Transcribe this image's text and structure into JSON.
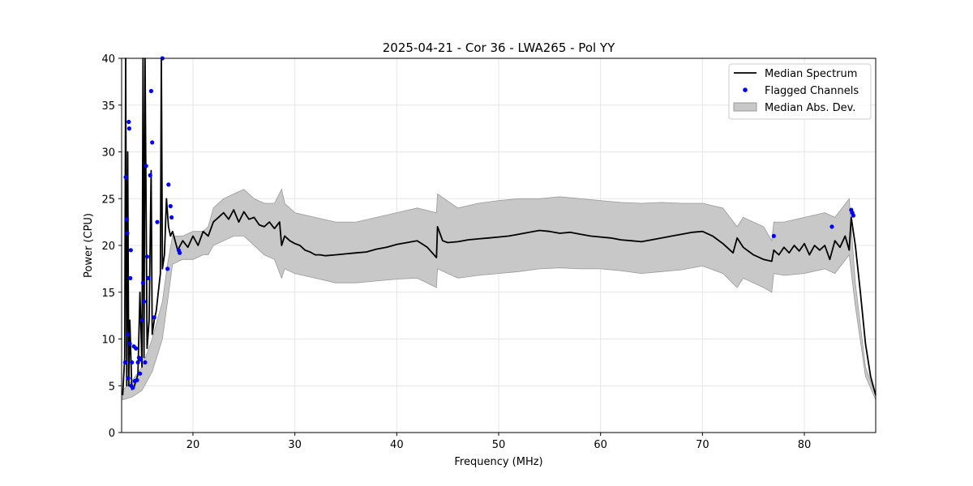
{
  "chart_data": {
    "type": "line",
    "title": "2025-04-21 - Cor 36 - LWA265 - Pol YY",
    "xlabel": "Frequency (MHz)",
    "ylabel": "Power (CPU)",
    "xlim": [
      13,
      87
    ],
    "ylim": [
      0,
      40
    ],
    "xticks": [
      20,
      30,
      40,
      50,
      60,
      70,
      80
    ],
    "yticks": [
      0,
      5,
      10,
      15,
      20,
      25,
      30,
      35,
      40
    ],
    "grid": true,
    "legend_position": "top-right",
    "colors": {
      "median": "#000000",
      "flagged": "#0000ff",
      "mad": "#c8c8c8",
      "mad_edge": "#999999"
    },
    "legend": [
      {
        "label": "Median Spectrum",
        "kind": "line"
      },
      {
        "label": "Flagged Channels",
        "kind": "scatter"
      },
      {
        "label": "Median Abs. Dev.",
        "kind": "band"
      }
    ],
    "series": [
      {
        "name": "Median Spectrum",
        "x": [
          13.1,
          13.3,
          13.4,
          13.5,
          13.6,
          13.7,
          13.8,
          14.0,
          14.2,
          14.4,
          14.6,
          14.8,
          15.0,
          15.1,
          15.2,
          15.3,
          15.5,
          15.7,
          15.9,
          16.0,
          16.2,
          16.4,
          16.6,
          16.8,
          16.9,
          17.0,
          17.2,
          17.4,
          17.6,
          17.8,
          18.0,
          18.5,
          19.0,
          19.5,
          20.0,
          20.5,
          21.0,
          21.5,
          22.0,
          22.5,
          23.0,
          23.5,
          24.0,
          24.5,
          25.0,
          25.5,
          26.0,
          26.5,
          27.0,
          27.5,
          28.0,
          28.5,
          28.7,
          29.0,
          29.5,
          30.0,
          30.5,
          31.0,
          31.5,
          32.0,
          32.5,
          33.0,
          34.0,
          35.0,
          36.0,
          37.0,
          38.0,
          39.0,
          40.0,
          41.0,
          42.0,
          43.0,
          43.9,
          44.0,
          44.5,
          45.0,
          46.0,
          47.0,
          48.0,
          49.0,
          50.0,
          51.0,
          52.0,
          53.0,
          54.0,
          55.0,
          56.0,
          57.0,
          58.0,
          59.0,
          60.0,
          61.0,
          62.0,
          63.0,
          64.0,
          65.0,
          66.0,
          67.0,
          68.0,
          69.0,
          70.0,
          71.0,
          72.0,
          73.0,
          73.4,
          74.0,
          75.0,
          76.0,
          76.8,
          77.0,
          77.5,
          78.0,
          78.5,
          79.0,
          79.5,
          80.0,
          80.5,
          81.0,
          81.5,
          82.0,
          82.5,
          83.0,
          83.5,
          84.0,
          84.4,
          84.6,
          85.0,
          85.5,
          86.0,
          86.5,
          87.0
        ],
        "values": [
          4.0,
          8.0,
          40.0,
          5.0,
          30.0,
          5.0,
          12.0,
          4.6,
          4.8,
          5.5,
          6.2,
          15.0,
          7.0,
          40.0,
          8.0,
          40.0,
          9.0,
          12.0,
          28.0,
          10.5,
          12.0,
          13.0,
          15.0,
          17.0,
          40.0,
          17.5,
          19.0,
          25.0,
          22.0,
          21.0,
          21.5,
          19.5,
          20.5,
          19.8,
          21.0,
          20.0,
          21.5,
          21.0,
          22.5,
          23.0,
          23.5,
          22.8,
          23.8,
          22.5,
          23.6,
          22.8,
          23.0,
          22.2,
          22.0,
          22.5,
          21.8,
          22.5,
          20.0,
          21.0,
          20.5,
          20.2,
          20.0,
          19.5,
          19.3,
          19.0,
          19.0,
          18.9,
          19.0,
          19.1,
          19.2,
          19.3,
          19.6,
          19.8,
          20.1,
          20.3,
          20.5,
          19.8,
          18.7,
          22.0,
          20.5,
          20.3,
          20.4,
          20.6,
          20.7,
          20.8,
          20.9,
          21.0,
          21.2,
          21.4,
          21.6,
          21.5,
          21.3,
          21.4,
          21.2,
          21.0,
          20.9,
          20.8,
          20.6,
          20.5,
          20.4,
          20.6,
          20.8,
          21.0,
          21.2,
          21.4,
          21.5,
          21.0,
          20.2,
          19.2,
          20.8,
          19.8,
          19.0,
          18.5,
          18.3,
          19.5,
          19.0,
          19.8,
          19.2,
          20.0,
          19.4,
          20.2,
          19.0,
          20.0,
          19.5,
          20.0,
          18.5,
          20.5,
          19.8,
          21.0,
          19.5,
          23.0,
          20.0,
          15.0,
          9.5,
          6.0,
          4.0
        ]
      },
      {
        "name": "Flagged Channels",
        "x": [
          13.35,
          13.4,
          13.5,
          13.55,
          13.6,
          13.65,
          13.7,
          13.75,
          13.8,
          13.85,
          13.9,
          13.95,
          14.0,
          14.1,
          14.2,
          14.3,
          14.4,
          14.5,
          14.6,
          14.7,
          14.8,
          14.9,
          15.0,
          15.1,
          15.2,
          15.3,
          15.4,
          15.5,
          15.6,
          15.8,
          15.9,
          16.0,
          16.2,
          16.5,
          17.0,
          17.5,
          17.6,
          17.8,
          17.9,
          18.6,
          18.7,
          77.0,
          82.7,
          84.6,
          84.7,
          84.8
        ],
        "values": [
          7.5,
          27.3,
          22.8,
          21.3,
          10.5,
          5.8,
          33.2,
          32.5,
          9.5,
          16.5,
          19.5,
          5.0,
          7.5,
          4.8,
          9.2,
          5.5,
          9.0,
          5.6,
          7.5,
          8.0,
          6.3,
          7.8,
          12.0,
          16.0,
          14.0,
          7.5,
          28.5,
          18.8,
          16.5,
          27.5,
          36.5,
          31.0,
          12.3,
          22.5,
          40.0,
          17.5,
          26.5,
          24.2,
          23.0,
          19.5,
          19.2,
          21.0,
          22.0,
          23.8,
          23.5,
          23.2
        ]
      },
      {
        "name": "Median Abs. Dev.",
        "x": [
          13.1,
          14.0,
          15.0,
          16.0,
          17.0,
          17.5,
          18.0,
          19.0,
          20.0,
          21.0,
          21.5,
          22.0,
          23.0,
          24.0,
          25.0,
          26.0,
          27.0,
          28.0,
          28.7,
          29.0,
          30.0,
          32.0,
          34.0,
          36.0,
          38.0,
          40.0,
          42.0,
          43.9,
          44.0,
          46.0,
          48.0,
          50.0,
          52.0,
          54.0,
          56.0,
          58.0,
          60.0,
          62.0,
          64.0,
          66.0,
          68.0,
          70.0,
          72.0,
          73.4,
          74.0,
          76.0,
          76.8,
          77.0,
          78.0,
          80.0,
          82.0,
          83.0,
          84.4,
          85.0,
          86.0,
          87.0
        ],
        "upper": [
          4.5,
          5.5,
          7.0,
          10.0,
          14.0,
          18.0,
          21.0,
          21.0,
          21.5,
          21.5,
          22.0,
          24.0,
          25.0,
          25.5,
          26.0,
          25.0,
          24.5,
          24.5,
          26.0,
          24.5,
          23.5,
          23.0,
          22.5,
          22.5,
          23.0,
          23.5,
          24.0,
          23.5,
          25.5,
          24.0,
          24.5,
          24.8,
          25.0,
          25.0,
          25.2,
          25.0,
          24.8,
          24.6,
          24.5,
          24.6,
          24.5,
          24.5,
          24.0,
          22.0,
          23.0,
          22.0,
          20.5,
          22.5,
          22.5,
          23.0,
          23.5,
          23.0,
          25.0,
          16.0,
          7.0,
          4.0
        ],
        "lower": [
          3.5,
          3.8,
          4.5,
          6.5,
          10.0,
          14.0,
          18.0,
          18.5,
          18.5,
          19.0,
          19.0,
          20.0,
          20.5,
          21.0,
          21.0,
          20.0,
          19.0,
          18.5,
          16.5,
          17.5,
          17.0,
          16.5,
          16.0,
          16.0,
          16.2,
          16.4,
          16.5,
          15.5,
          17.5,
          16.5,
          16.8,
          17.0,
          17.2,
          17.5,
          17.6,
          17.5,
          17.5,
          17.3,
          17.0,
          17.2,
          17.4,
          17.8,
          17.0,
          15.5,
          16.5,
          15.5,
          15.0,
          17.0,
          16.8,
          17.0,
          17.5,
          17.0,
          19.0,
          13.5,
          6.0,
          3.5
        ]
      }
    ]
  }
}
